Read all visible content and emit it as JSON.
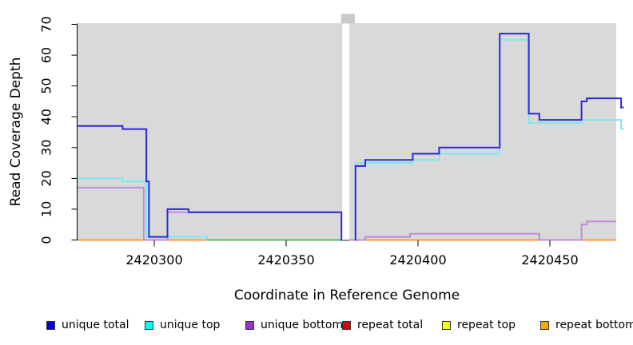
{
  "chart_data": {
    "type": "line",
    "interpolation": "step-after",
    "title": "",
    "xlabel": "Coordinate in Reference Genome",
    "ylabel": "Read Coverage Depth",
    "xlim": [
      2420271,
      2420478
    ],
    "ylim": [
      0,
      71
    ],
    "x_ticks": [
      2420300,
      2420350,
      2420400,
      2420450
    ],
    "y_ticks": [
      0,
      10,
      20,
      30,
      40,
      50,
      60,
      70
    ],
    "grid": false,
    "plot_bg": "#d9d9d9",
    "missing_region": {
      "from": 2420371,
      "to": 2420374
    },
    "series": [
      {
        "name": "repeat total",
        "legend_color": "#dd0000",
        "line_color": "#cc2222",
        "end": 2420475,
        "steps": [
          [
            2420271,
            0
          ],
          [
            2420371,
            null
          ],
          [
            2420374,
            0
          ]
        ]
      },
      {
        "name": "repeat top",
        "legend_color": "#ffff00",
        "line_color": "#f0f000",
        "end": 2420475,
        "steps": [
          [
            2420271,
            0
          ],
          [
            2420371,
            null
          ],
          [
            2420374,
            0
          ]
        ]
      },
      {
        "name": "repeat bottom",
        "legend_color": "#ffa500",
        "line_color": "#ff9d2e",
        "end": 2420475,
        "steps": [
          [
            2420271,
            0
          ],
          [
            2420371,
            null
          ],
          [
            2420374,
            0
          ]
        ]
      },
      {
        "name": "unique top",
        "legend_color": "#00ffff",
        "line_color": "#7de9f1",
        "end": 2420478,
        "steps": [
          [
            2420271,
            20
          ],
          [
            2420288,
            19
          ],
          [
            2420297,
            1
          ],
          [
            2420320,
            0
          ],
          [
            2420371,
            null
          ],
          [
            2420376,
            0
          ],
          [
            2420376.3,
            25
          ],
          [
            2420398,
            26
          ],
          [
            2420408,
            28
          ],
          [
            2420431,
            65
          ],
          [
            2420442,
            38
          ],
          [
            2420462,
            39
          ],
          [
            2420477,
            36
          ]
        ]
      },
      {
        "name": "unique bottom",
        "legend_color": "#9932cc",
        "line_color": "#bd8bdc",
        "end": 2420475,
        "steps": [
          [
            2420271,
            17
          ],
          [
            2420296,
            0
          ],
          [
            2420305,
            9
          ],
          [
            2420371,
            0
          ],
          [
            2420372,
            null
          ],
          [
            2420374,
            0
          ],
          [
            2420380,
            1
          ],
          [
            2420397,
            2
          ],
          [
            2420446,
            0
          ],
          [
            2420462,
            5
          ],
          [
            2420464,
            6
          ]
        ]
      },
      {
        "name": "unique total",
        "legend_color": "#0000e0",
        "line_color": "#2a2ad8",
        "end": 2420478,
        "steps": [
          [
            2420271,
            37
          ],
          [
            2420288,
            36
          ],
          [
            2420297,
            19
          ],
          [
            2420298,
            1
          ],
          [
            2420305,
            10
          ],
          [
            2420313,
            9
          ],
          [
            2420371,
            0
          ],
          [
            2420372,
            null
          ],
          [
            2420376,
            0
          ],
          [
            2420376.3,
            24
          ],
          [
            2420380,
            26
          ],
          [
            2420398,
            28
          ],
          [
            2420408,
            30
          ],
          [
            2420431,
            67
          ],
          [
            2420442,
            41
          ],
          [
            2420446,
            39
          ],
          [
            2420462,
            45
          ],
          [
            2420464,
            46
          ],
          [
            2420477,
            43
          ]
        ]
      }
    ],
    "overlap_artifact": {
      "color": "#5cb85c",
      "from": 2420320,
      "to": 2420371,
      "value": 0,
      "after_series": "unique top"
    },
    "legend": [
      {
        "label": "unique total",
        "color": "#0000e0"
      },
      {
        "label": "unique top",
        "color": "#00ffff"
      },
      {
        "label": "unique bottom",
        "color": "#9932cc"
      },
      {
        "label": "repeat total",
        "color": "#dd0000"
      },
      {
        "label": "repeat top",
        "color": "#ffff00"
      },
      {
        "label": "repeat bottom",
        "color": "#ffa500"
      }
    ]
  }
}
